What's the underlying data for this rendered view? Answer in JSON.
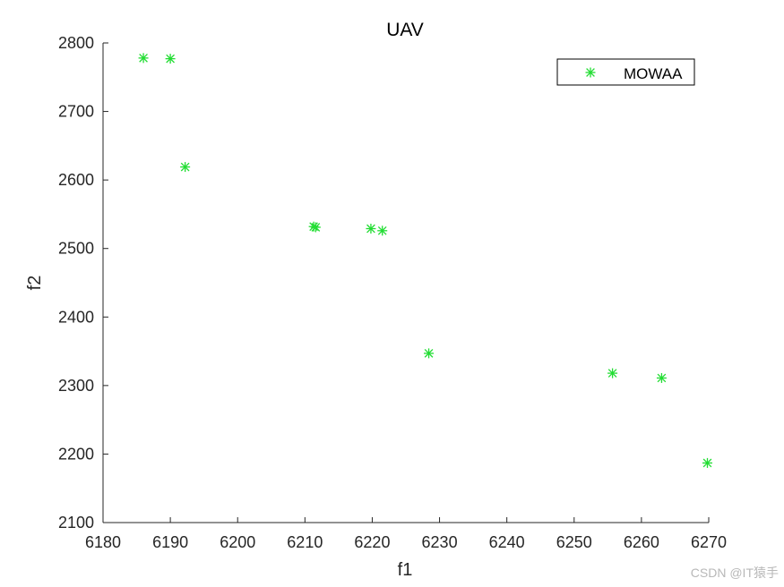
{
  "chart_data": {
    "type": "scatter",
    "title": "UAV",
    "xlabel": "f1",
    "ylabel": "f2",
    "xlim": [
      6180,
      6270
    ],
    "ylim": [
      2100,
      2800
    ],
    "xticks": [
      6180,
      6190,
      6200,
      6210,
      6220,
      6230,
      6240,
      6250,
      6260,
      6270
    ],
    "yticks": [
      2100,
      2200,
      2300,
      2400,
      2500,
      2600,
      2700,
      2800
    ],
    "legend_position": "top-right",
    "grid": false,
    "series": [
      {
        "name": "MOWAA",
        "color": "#22dd33",
        "marker": "asterisk",
        "points": [
          {
            "x": 6186.0,
            "y": 2778
          },
          {
            "x": 6190.0,
            "y": 2777
          },
          {
            "x": 6192.2,
            "y": 2619
          },
          {
            "x": 6211.3,
            "y": 2532
          },
          {
            "x": 6211.6,
            "y": 2531
          },
          {
            "x": 6219.8,
            "y": 2529
          },
          {
            "x": 6221.5,
            "y": 2526
          },
          {
            "x": 6228.4,
            "y": 2347
          },
          {
            "x": 6255.7,
            "y": 2318
          },
          {
            "x": 6263.0,
            "y": 2311
          },
          {
            "x": 6269.8,
            "y": 2187
          }
        ]
      }
    ]
  },
  "watermark": "CSDN @IT猿手"
}
